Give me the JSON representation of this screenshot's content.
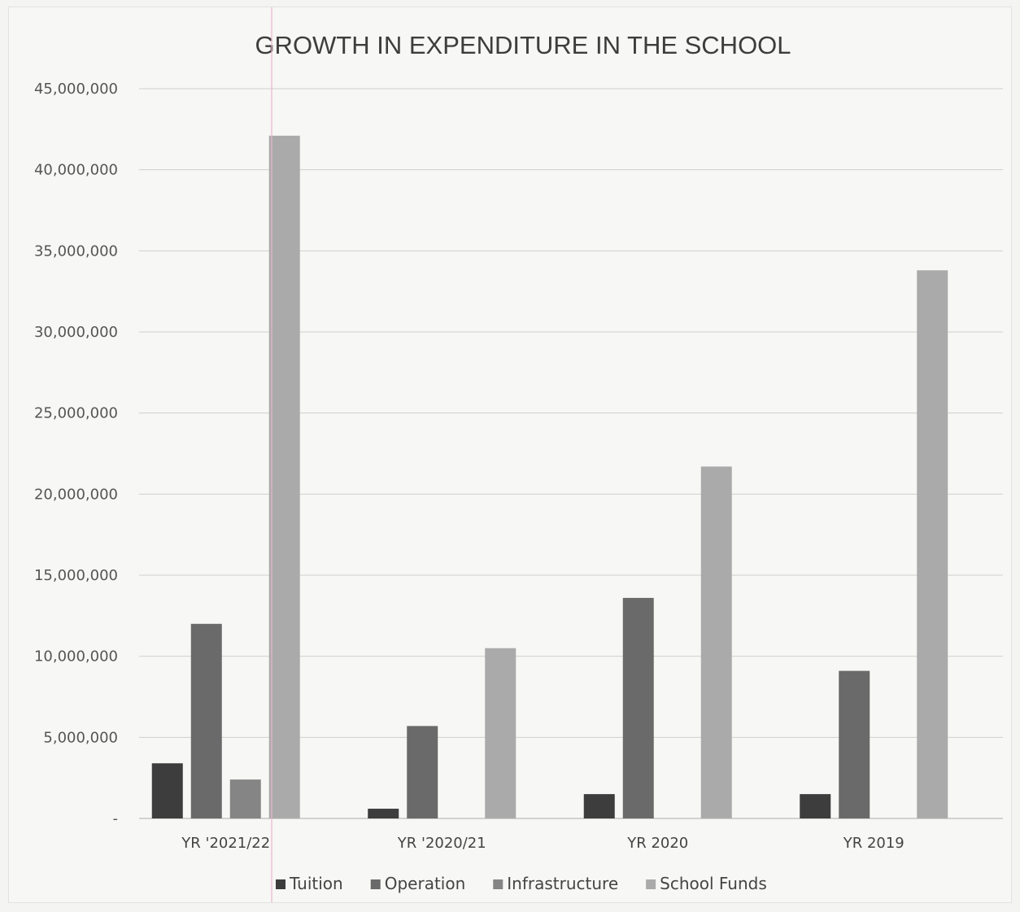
{
  "chart_data": {
    "type": "bar",
    "title": "GROWTH  IN  EXPENDITURE IN THE SCHOOL",
    "xlabel": "",
    "ylabel": "",
    "categories": [
      "YR '2021/22",
      "YR '2020/21",
      "YR 2020",
      "YR 2019"
    ],
    "series": [
      {
        "name": "Tuition",
        "color": "#3d3d3d",
        "values": [
          3400000,
          600000,
          1500000,
          1500000
        ]
      },
      {
        "name": "Operation",
        "color": "#6a6a6a",
        "values": [
          12000000,
          5700000,
          13600000,
          9100000
        ]
      },
      {
        "name": "Infrastructure",
        "color": "#858585",
        "values": [
          2400000,
          0,
          0,
          0
        ]
      },
      {
        "name": "School Funds",
        "color": "#aaaaaa",
        "values": [
          42100000,
          10500000,
          21700000,
          33800000
        ]
      }
    ],
    "ylim": [
      0,
      45000000
    ],
    "yticks": [
      0,
      5000000,
      10000000,
      15000000,
      20000000,
      25000000,
      30000000,
      35000000,
      40000000,
      45000000
    ],
    "ytick_labels": [
      "-",
      "5,000,000",
      "10,000,000",
      "15,000,000",
      "20,000,000",
      "25,000,000",
      "30,000,000",
      "35,000,000",
      "40,000,000",
      "45,000,000"
    ],
    "grid": true,
    "legend_position": "bottom"
  }
}
